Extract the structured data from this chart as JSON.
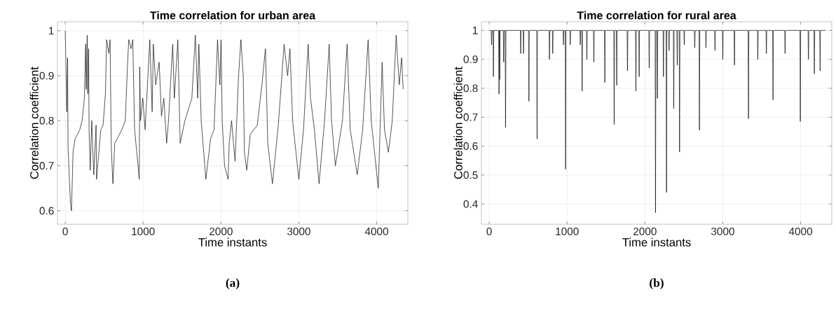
{
  "chart_data": [
    {
      "type": "line",
      "title": "Time correlation for urban area",
      "xlabel": "Time instants",
      "ylabel": "Correlation coefficient",
      "annotations": [
        "(a)"
      ],
      "grid": true,
      "xlim": [
        -100,
        4400
      ],
      "ylim": [
        0.57,
        1.02
      ],
      "xticks": [
        0,
        1000,
        2000,
        3000,
        4000
      ],
      "yticks": [
        0.6,
        0.7,
        0.8,
        0.9,
        1
      ],
      "series": [
        {
          "color": "#000000",
          "x": [
            0,
            20,
            30,
            36,
            66,
            80,
            100,
            126,
            186,
            216,
            246,
            262,
            270,
            282,
            290,
            300,
            306,
            321,
            340,
            366,
            396,
            402,
            456,
            486,
            516,
            531,
            561,
            576,
            591,
            612,
            636,
            726,
            771,
            801,
            816,
            846,
            867,
            891,
            951,
            957,
            966,
            996,
            1026,
            1056,
            1086,
            1116,
            1131,
            1161,
            1206,
            1236,
            1266,
            1302,
            1326,
            1380,
            1401,
            1446,
            1476,
            1536,
            1626,
            1671,
            1701,
            1716,
            1746,
            1806,
            1866,
            1911,
            1956,
            1986,
            2001,
            2016,
            2046,
            2091,
            2106,
            2136,
            2181,
            2226,
            2256,
            2286,
            2301,
            2331,
            2376,
            2466,
            2526,
            2571,
            2601,
            2661,
            2736,
            2811,
            2856,
            2886,
            2920,
            3000,
            3060,
            3120,
            3150,
            3200,
            3260,
            3330,
            3390,
            3420,
            3470,
            3560,
            3620,
            3660,
            3750,
            3820,
            3890,
            3930,
            4020,
            4070,
            4100,
            4150,
            4200,
            4250,
            4290,
            4320,
            4340
          ],
          "values": [
            1.0,
            0.82,
            0.94,
            0.74,
            0.62,
            0.6,
            0.73,
            0.76,
            0.78,
            0.8,
            0.85,
            0.97,
            0.87,
            0.99,
            0.86,
            0.96,
            0.78,
            0.69,
            0.8,
            0.68,
            0.79,
            0.67,
            0.78,
            0.79,
            0.86,
            0.98,
            0.95,
            0.98,
            0.74,
            0.66,
            0.75,
            0.78,
            0.8,
            0.93,
            0.98,
            0.96,
            0.98,
            0.78,
            0.67,
            0.92,
            0.8,
            0.85,
            0.78,
            0.88,
            0.98,
            0.82,
            0.97,
            0.88,
            0.93,
            0.81,
            0.85,
            0.75,
            0.8,
            0.97,
            0.85,
            0.98,
            0.75,
            0.8,
            0.85,
            0.99,
            0.85,
            0.97,
            0.8,
            0.67,
            0.76,
            0.78,
            0.98,
            0.88,
            0.98,
            0.8,
            0.7,
            0.67,
            0.75,
            0.8,
            0.71,
            0.9,
            0.98,
            0.9,
            0.73,
            0.69,
            0.77,
            0.79,
            0.88,
            0.96,
            0.75,
            0.66,
            0.79,
            0.97,
            0.9,
            0.96,
            0.8,
            0.67,
            0.78,
            0.97,
            0.85,
            0.78,
            0.66,
            0.8,
            0.97,
            0.8,
            0.7,
            0.8,
            0.97,
            0.78,
            0.68,
            0.78,
            0.98,
            0.8,
            0.65,
            0.93,
            0.78,
            0.73,
            0.8,
            0.99,
            0.88,
            0.94,
            0.87
          ]
        }
      ]
    },
    {
      "type": "line",
      "title": "Time correlation for rural area",
      "xlabel": "Time instants",
      "ylabel": "Correlation coefficient",
      "annotations": [
        "(b)"
      ],
      "grid": true,
      "xlim": [
        -100,
        4400
      ],
      "ylim": [
        0.33,
        1.03
      ],
      "xticks": [
        0,
        1000,
        2000,
        3000,
        4000
      ],
      "yticks": [
        0.4,
        0.5,
        0.6,
        0.7,
        0.8,
        0.9,
        1
      ],
      "series": [
        {
          "color": "#000000",
          "x": [
            0,
            25,
            30,
            35,
            49,
            54,
            59,
            121,
            126,
            130,
            135,
            140,
            181,
            186,
            191,
            205,
            210,
            215,
            400,
            405,
            410,
            436,
            441,
            446,
            505,
            510,
            515,
            610,
            615,
            620,
            769,
            774,
            779,
            811,
            816,
            821,
            949,
            954,
            959,
            976,
            981,
            986,
            1036,
            1041,
            1046,
            1165,
            1170,
            1175,
            1189,
            1194,
            1199,
            1249,
            1254,
            1259,
            1339,
            1344,
            1349,
            1480,
            1485,
            1490,
            1600,
            1605,
            1610,
            1633,
            1638,
            1643,
            1771,
            1776,
            1781,
            1879,
            1884,
            1889,
            1921,
            1926,
            1931,
            2050,
            2055,
            2060,
            2131,
            2136,
            2141,
            2155,
            2160,
            2165,
            2233,
            2238,
            2243,
            2272,
            2277,
            2282,
            2305,
            2310,
            2315,
            2365,
            2370,
            2375,
            2410,
            2415,
            2420,
            2440,
            2445,
            2450,
            2500,
            2505,
            2510,
            2635,
            2640,
            2645,
            2695,
            2700,
            2705,
            2779,
            2784,
            2789,
            2895,
            2900,
            2905,
            2995,
            3000,
            3005,
            3145,
            3150,
            3155,
            3325,
            3330,
            3335,
            3445,
            3450,
            3455,
            3555,
            3560,
            3565,
            3640,
            3645,
            3650,
            3795,
            3800,
            3805,
            3991,
            3996,
            4001,
            4095,
            4100,
            4105,
            4171,
            4176,
            4181,
            4245,
            4250,
            4255,
            4320
          ],
          "values": [
            1,
            1,
            0.95,
            1,
            1,
            0.84,
            1,
            1,
            0.78,
            1,
            0.83,
            1,
            1,
            0.89,
            1,
            1,
            0.665,
            1,
            1,
            0.92,
            1,
            1,
            0.92,
            1,
            1,
            0.755,
            1,
            1,
            0.625,
            1,
            1,
            0.9,
            1,
            1,
            0.92,
            1,
            1,
            0.95,
            1,
            1,
            0.52,
            1,
            1,
            0.95,
            1,
            1,
            0.95,
            1,
            1,
            0.79,
            1,
            1,
            0.9,
            1,
            1,
            0.89,
            1,
            1,
            0.82,
            1,
            1,
            0.675,
            1,
            1,
            0.81,
            1,
            1,
            0.86,
            1,
            1,
            0.79,
            1,
            1,
            0.84,
            1,
            1,
            0.87,
            1,
            1,
            0.37,
            1,
            1,
            0.765,
            1,
            1,
            0.84,
            1,
            1,
            0.44,
            1,
            1,
            0.93,
            1,
            1,
            0.73,
            1,
            1,
            0.88,
            1,
            1,
            0.58,
            1,
            1,
            0.95,
            1,
            1,
            0.94,
            1,
            1,
            0.655,
            1,
            1,
            0.94,
            1,
            1,
            0.93,
            1,
            1,
            0.9,
            1,
            1,
            0.88,
            1,
            1,
            0.695,
            1,
            1,
            0.9,
            1,
            1,
            0.92,
            1,
            1,
            0.76,
            1,
            1,
            0.92,
            1,
            1,
            0.685,
            1,
            1,
            0.9,
            1,
            1,
            0.85,
            1,
            1,
            0.86,
            1,
            1
          ]
        }
      ]
    }
  ]
}
